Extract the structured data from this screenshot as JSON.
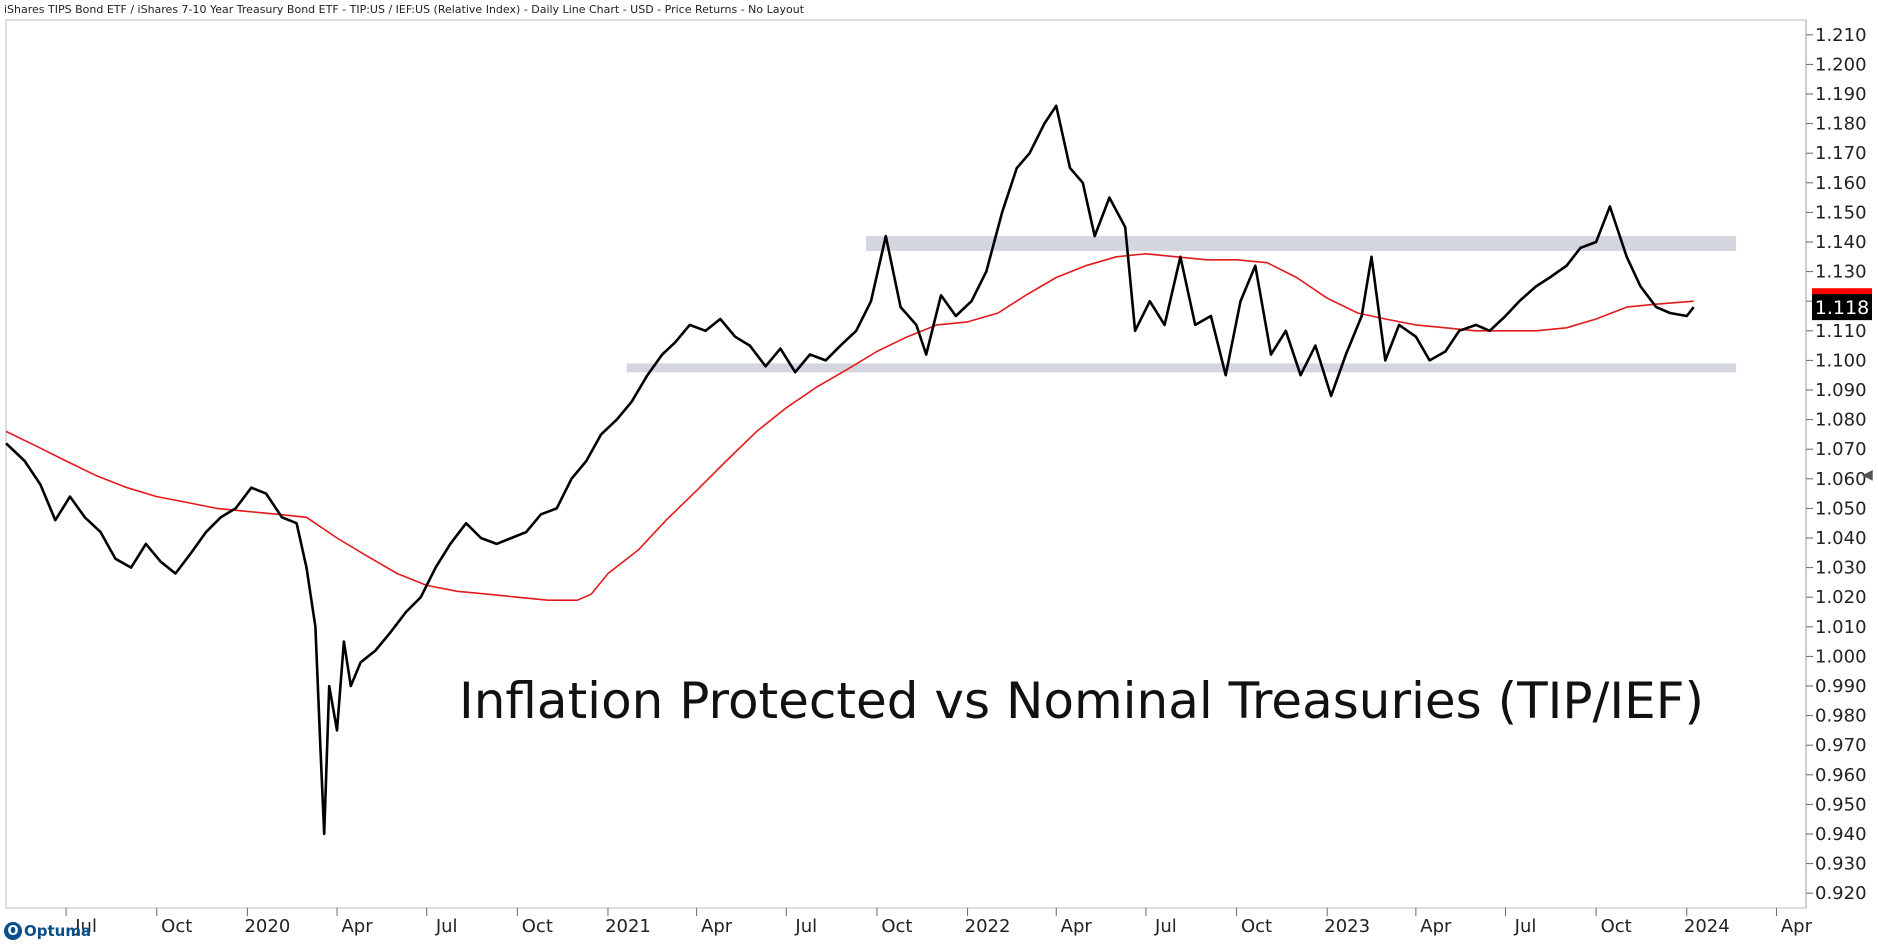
{
  "header": {
    "title": "iShares TIPS Bond ETF / iShares 7-10 Year Treasury Bond ETF - TIP:US / IEF:US (Relative Index) - Daily Line Chart - USD - Price Returns - No Layout"
  },
  "logo": {
    "text": "Optuma",
    "mark": "O"
  },
  "collapse_icon": "chevron-left-icon",
  "chart_data": {
    "type": "line",
    "title": "Inflation Protected vs Nominal Treasuries (TIP/IEF)",
    "ylim": [
      0.915,
      1.215
    ],
    "yticks": [
      "1.210",
      "1.200",
      "1.190",
      "1.180",
      "1.170",
      "1.160",
      "1.150",
      "1.140",
      "1.130",
      "1.120",
      "1.110",
      "1.100",
      "1.090",
      "1.080",
      "1.070",
      "1.060",
      "1.050",
      "1.040",
      "1.030",
      "1.020",
      "1.010",
      "1.000",
      "0.990",
      "0.980",
      "0.970",
      "0.960",
      "0.950",
      "0.940",
      "0.930",
      "0.920"
    ],
    "xlim": [
      "2019-05-01",
      "2024-05-01"
    ],
    "xticks": [
      {
        "date": "2019-07-01",
        "label": "Jul"
      },
      {
        "date": "2019-10-01",
        "label": "Oct"
      },
      {
        "date": "2020-01-01",
        "label": "2020"
      },
      {
        "date": "2020-04-01",
        "label": "Apr"
      },
      {
        "date": "2020-07-01",
        "label": "Jul"
      },
      {
        "date": "2020-10-01",
        "label": "Oct"
      },
      {
        "date": "2021-01-01",
        "label": "2021"
      },
      {
        "date": "2021-04-01",
        "label": "Apr"
      },
      {
        "date": "2021-07-01",
        "label": "Jul"
      },
      {
        "date": "2021-10-01",
        "label": "Oct"
      },
      {
        "date": "2022-01-01",
        "label": "2022"
      },
      {
        "date": "2022-04-01",
        "label": "Apr"
      },
      {
        "date": "2022-07-01",
        "label": "Jul"
      },
      {
        "date": "2022-10-01",
        "label": "Oct"
      },
      {
        "date": "2023-01-01",
        "label": "2023"
      },
      {
        "date": "2023-04-01",
        "label": "Apr"
      },
      {
        "date": "2023-07-01",
        "label": "Jul"
      },
      {
        "date": "2023-10-01",
        "label": "Oct"
      },
      {
        "date": "2024-01-01",
        "label": "2024"
      },
      {
        "date": "2024-04-01",
        "label": "Apr"
      }
    ],
    "colors": {
      "price": "#000000",
      "ma": "#e31a1c",
      "band": "#d3d6df",
      "ma_badge": "#ff0000",
      "price_badge": "#000000"
    },
    "last_values": {
      "ma": "1.120",
      "price": "1.118"
    },
    "bands": [
      {
        "x_start": "2021-09-20",
        "x_end": "2024-02-20",
        "y_low": 1.137,
        "y_high": 1.142
      },
      {
        "x_start": "2021-01-20",
        "x_end": "2024-02-20",
        "y_low": 1.096,
        "y_high": 1.099
      }
    ],
    "series": [
      {
        "type": "price",
        "points": [
          [
            "2019-05-01",
            1.072
          ],
          [
            "2019-05-20",
            1.066
          ],
          [
            "2019-06-05",
            1.058
          ],
          [
            "2019-06-20",
            1.046
          ],
          [
            "2019-07-05",
            1.054
          ],
          [
            "2019-07-20",
            1.047
          ],
          [
            "2019-08-05",
            1.042
          ],
          [
            "2019-08-20",
            1.033
          ],
          [
            "2019-09-05",
            1.03
          ],
          [
            "2019-09-20",
            1.038
          ],
          [
            "2019-10-05",
            1.032
          ],
          [
            "2019-10-20",
            1.028
          ],
          [
            "2019-11-05",
            1.035
          ],
          [
            "2019-11-20",
            1.042
          ],
          [
            "2019-12-05",
            1.047
          ],
          [
            "2019-12-20",
            1.05
          ],
          [
            "2020-01-05",
            1.057
          ],
          [
            "2020-01-20",
            1.055
          ],
          [
            "2020-02-05",
            1.047
          ],
          [
            "2020-02-20",
            1.045
          ],
          [
            "2020-03-01",
            1.03
          ],
          [
            "2020-03-10",
            1.01
          ],
          [
            "2020-03-15",
            0.97
          ],
          [
            "2020-03-19",
            0.94
          ],
          [
            "2020-03-24",
            0.99
          ],
          [
            "2020-04-01",
            0.975
          ],
          [
            "2020-04-08",
            1.005
          ],
          [
            "2020-04-15",
            0.99
          ],
          [
            "2020-04-25",
            0.998
          ],
          [
            "2020-05-10",
            1.002
          ],
          [
            "2020-05-25",
            1.008
          ],
          [
            "2020-06-10",
            1.015
          ],
          [
            "2020-06-25",
            1.02
          ],
          [
            "2020-07-10",
            1.03
          ],
          [
            "2020-07-25",
            1.038
          ],
          [
            "2020-08-10",
            1.045
          ],
          [
            "2020-08-25",
            1.04
          ],
          [
            "2020-09-10",
            1.038
          ],
          [
            "2020-09-25",
            1.04
          ],
          [
            "2020-10-10",
            1.042
          ],
          [
            "2020-10-25",
            1.048
          ],
          [
            "2020-11-10",
            1.05
          ],
          [
            "2020-11-25",
            1.06
          ],
          [
            "2020-12-10",
            1.066
          ],
          [
            "2020-12-25",
            1.075
          ],
          [
            "2021-01-10",
            1.08
          ],
          [
            "2021-01-25",
            1.086
          ],
          [
            "2021-02-10",
            1.095
          ],
          [
            "2021-02-25",
            1.102
          ],
          [
            "2021-03-10",
            1.106
          ],
          [
            "2021-03-25",
            1.112
          ],
          [
            "2021-04-10",
            1.11
          ],
          [
            "2021-04-25",
            1.114
          ],
          [
            "2021-05-10",
            1.108
          ],
          [
            "2021-05-25",
            1.105
          ],
          [
            "2021-06-10",
            1.098
          ],
          [
            "2021-06-25",
            1.104
          ],
          [
            "2021-07-10",
            1.096
          ],
          [
            "2021-07-25",
            1.102
          ],
          [
            "2021-08-10",
            1.1
          ],
          [
            "2021-08-25",
            1.105
          ],
          [
            "2021-09-10",
            1.11
          ],
          [
            "2021-09-25",
            1.12
          ],
          [
            "2021-10-10",
            1.142
          ],
          [
            "2021-10-25",
            1.118
          ],
          [
            "2021-11-10",
            1.112
          ],
          [
            "2021-11-20",
            1.102
          ],
          [
            "2021-12-05",
            1.122
          ],
          [
            "2021-12-20",
            1.115
          ],
          [
            "2022-01-05",
            1.12
          ],
          [
            "2022-01-20",
            1.13
          ],
          [
            "2022-02-05",
            1.15
          ],
          [
            "2022-02-20",
            1.165
          ],
          [
            "2022-03-05",
            1.17
          ],
          [
            "2022-03-20",
            1.18
          ],
          [
            "2022-04-01",
            1.186
          ],
          [
            "2022-04-15",
            1.165
          ],
          [
            "2022-04-28",
            1.16
          ],
          [
            "2022-05-10",
            1.142
          ],
          [
            "2022-05-25",
            1.155
          ],
          [
            "2022-06-10",
            1.145
          ],
          [
            "2022-06-20",
            1.11
          ],
          [
            "2022-07-05",
            1.12
          ],
          [
            "2022-07-20",
            1.112
          ],
          [
            "2022-08-05",
            1.135
          ],
          [
            "2022-08-20",
            1.112
          ],
          [
            "2022-09-05",
            1.115
          ],
          [
            "2022-09-20",
            1.095
          ],
          [
            "2022-10-05",
            1.12
          ],
          [
            "2022-10-20",
            1.132
          ],
          [
            "2022-11-05",
            1.102
          ],
          [
            "2022-11-20",
            1.11
          ],
          [
            "2022-12-05",
            1.095
          ],
          [
            "2022-12-20",
            1.105
          ],
          [
            "2023-01-05",
            1.088
          ],
          [
            "2023-01-20",
            1.102
          ],
          [
            "2023-02-05",
            1.115
          ],
          [
            "2023-02-15",
            1.135
          ],
          [
            "2023-03-01",
            1.1
          ],
          [
            "2023-03-15",
            1.112
          ],
          [
            "2023-04-01",
            1.108
          ],
          [
            "2023-04-15",
            1.1
          ],
          [
            "2023-05-01",
            1.103
          ],
          [
            "2023-05-15",
            1.11
          ],
          [
            "2023-06-01",
            1.112
          ],
          [
            "2023-06-15",
            1.11
          ],
          [
            "2023-07-01",
            1.115
          ],
          [
            "2023-07-15",
            1.12
          ],
          [
            "2023-08-01",
            1.125
          ],
          [
            "2023-08-15",
            1.128
          ],
          [
            "2023-09-01",
            1.132
          ],
          [
            "2023-09-15",
            1.138
          ],
          [
            "2023-10-01",
            1.14
          ],
          [
            "2023-10-15",
            1.152
          ],
          [
            "2023-11-01",
            1.135
          ],
          [
            "2023-11-15",
            1.125
          ],
          [
            "2023-12-01",
            1.118
          ],
          [
            "2023-12-15",
            1.116
          ],
          [
            "2024-01-01",
            1.115
          ],
          [
            "2024-01-08",
            1.118
          ]
        ]
      },
      {
        "type": "ma",
        "points": [
          [
            "2019-05-01",
            1.076
          ],
          [
            "2019-06-01",
            1.071
          ],
          [
            "2019-07-01",
            1.066
          ],
          [
            "2019-08-01",
            1.061
          ],
          [
            "2019-09-01",
            1.057
          ],
          [
            "2019-10-01",
            1.054
          ],
          [
            "2019-11-01",
            1.052
          ],
          [
            "2019-12-01",
            1.05
          ],
          [
            "2020-01-01",
            1.049
          ],
          [
            "2020-02-01",
            1.048
          ],
          [
            "2020-03-01",
            1.047
          ],
          [
            "2020-04-01",
            1.04
          ],
          [
            "2020-05-01",
            1.034
          ],
          [
            "2020-06-01",
            1.028
          ],
          [
            "2020-07-01",
            1.024
          ],
          [
            "2020-08-01",
            1.022
          ],
          [
            "2020-09-01",
            1.021
          ],
          [
            "2020-10-01",
            1.02
          ],
          [
            "2020-11-01",
            1.019
          ],
          [
            "2020-12-01",
            1.019
          ],
          [
            "2020-12-15",
            1.021
          ],
          [
            "2021-01-01",
            1.028
          ],
          [
            "2021-02-01",
            1.036
          ],
          [
            "2021-03-01",
            1.046
          ],
          [
            "2021-04-01",
            1.056
          ],
          [
            "2021-05-01",
            1.066
          ],
          [
            "2021-06-01",
            1.076
          ],
          [
            "2021-07-01",
            1.084
          ],
          [
            "2021-08-01",
            1.091
          ],
          [
            "2021-09-01",
            1.097
          ],
          [
            "2021-10-01",
            1.103
          ],
          [
            "2021-11-01",
            1.108
          ],
          [
            "2021-12-01",
            1.112
          ],
          [
            "2022-01-01",
            1.113
          ],
          [
            "2022-02-01",
            1.116
          ],
          [
            "2022-03-01",
            1.122
          ],
          [
            "2022-04-01",
            1.128
          ],
          [
            "2022-05-01",
            1.132
          ],
          [
            "2022-06-01",
            1.135
          ],
          [
            "2022-07-01",
            1.136
          ],
          [
            "2022-08-01",
            1.135
          ],
          [
            "2022-09-01",
            1.134
          ],
          [
            "2022-10-01",
            1.134
          ],
          [
            "2022-11-01",
            1.133
          ],
          [
            "2022-12-01",
            1.128
          ],
          [
            "2023-01-01",
            1.121
          ],
          [
            "2023-02-01",
            1.116
          ],
          [
            "2023-03-01",
            1.114
          ],
          [
            "2023-04-01",
            1.112
          ],
          [
            "2023-05-01",
            1.111
          ],
          [
            "2023-06-01",
            1.11
          ],
          [
            "2023-07-01",
            1.11
          ],
          [
            "2023-08-01",
            1.11
          ],
          [
            "2023-09-01",
            1.111
          ],
          [
            "2023-10-01",
            1.114
          ],
          [
            "2023-11-01",
            1.118
          ],
          [
            "2023-12-01",
            1.119
          ],
          [
            "2024-01-08",
            1.12
          ]
        ]
      }
    ]
  }
}
